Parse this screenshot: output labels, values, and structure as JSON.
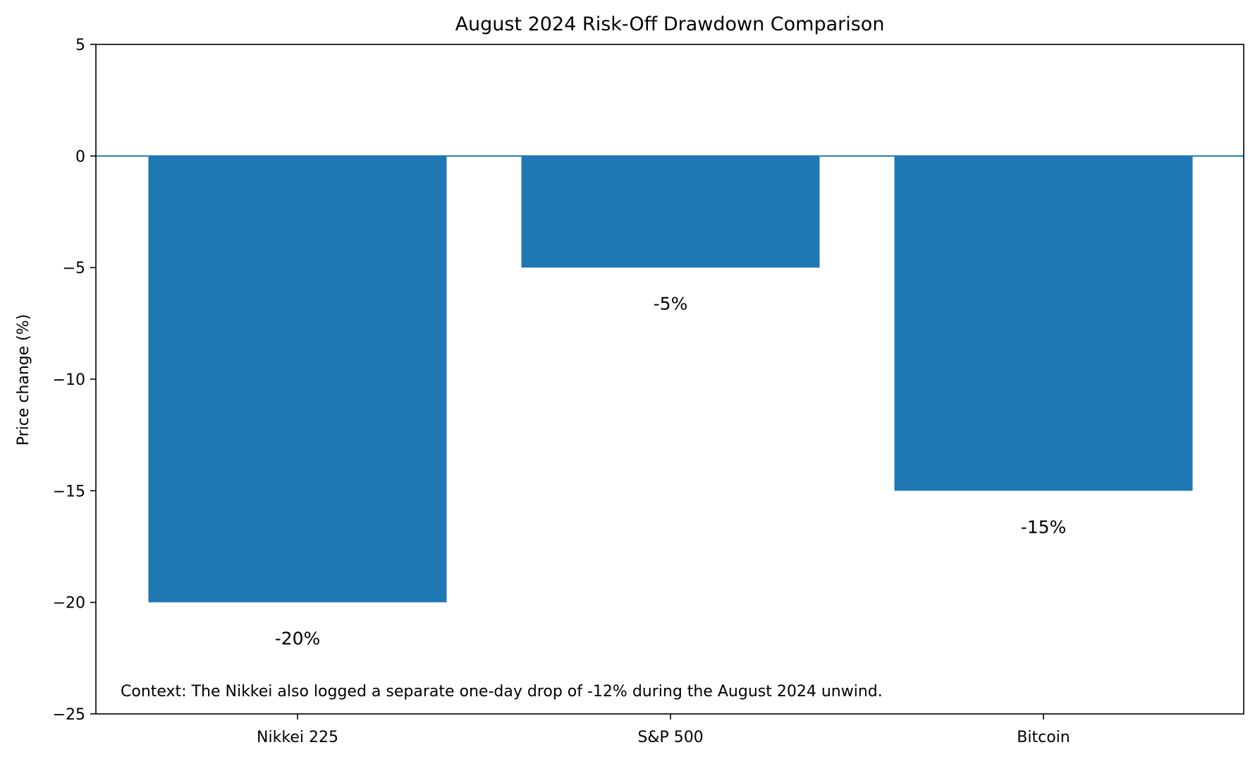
{
  "chart_data": {
    "type": "bar",
    "title": "August 2024 Risk-Off Drawdown Comparison",
    "xlabel": "",
    "ylabel": "Price change (%)",
    "categories": [
      "Nikkei 225",
      "S&P 500",
      "Bitcoin"
    ],
    "values": [
      -20,
      -5,
      -15
    ],
    "data_labels": [
      "-20%",
      "-5%",
      "-15%"
    ],
    "ylim": [
      -25,
      5
    ],
    "yticks": [
      5,
      0,
      -5,
      -10,
      -15,
      -20,
      -25
    ],
    "ytick_labels": [
      "5",
      "0",
      "−5",
      "−10",
      "−15",
      "−20",
      "−25"
    ],
    "annotation": "Context: The Nikkei also logged a separate one-day drop of -12% during the August 2024 unwind.",
    "bar_color": "#1f77b4",
    "zero_line_color": "#1f77b4",
    "grid": false,
    "legend": "none"
  }
}
